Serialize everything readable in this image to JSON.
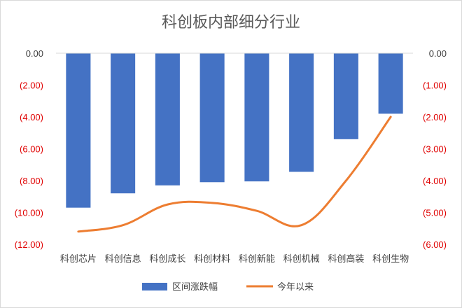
{
  "chart_data": {
    "type": "bar+line",
    "title": "科创板内部细分行业",
    "categories": [
      "科创芯片",
      "科创信息",
      "科创成长",
      "科创材料",
      "科创新能",
      "科创机械",
      "科创高装",
      "科创生物"
    ],
    "series": [
      {
        "name": "区间涨跌幅",
        "type": "bar",
        "axis": "left",
        "values": [
          -9.7,
          -8.8,
          -8.3,
          -8.1,
          -8.05,
          -7.45,
          -5.4,
          -3.8
        ]
      },
      {
        "name": "今年以来",
        "type": "line",
        "axis": "right",
        "values": [
          -5.6,
          -5.4,
          -4.75,
          -4.7,
          -4.95,
          -5.4,
          -4.0,
          -2.0
        ]
      }
    ],
    "left_axis": {
      "ylim": [
        -12,
        0
      ],
      "ticks": [
        "0.00",
        "(2.00)",
        "(4.00)",
        "(6.00)",
        "(8.00)",
        "(10.00)",
        "(12.00)"
      ]
    },
    "right_axis": {
      "ylim": [
        -6,
        0
      ],
      "ticks": [
        "0.00",
        "(1.00)",
        "(2.00)",
        "(3.00)",
        "(4.00)",
        "(5.00)",
        "(6.00)"
      ]
    },
    "legend": "bottom",
    "grid": false,
    "colors": {
      "bar": "#4472c4",
      "line": "#ed7d31",
      "negative_tick": "#e00000",
      "zero_tick": "#404040"
    }
  }
}
